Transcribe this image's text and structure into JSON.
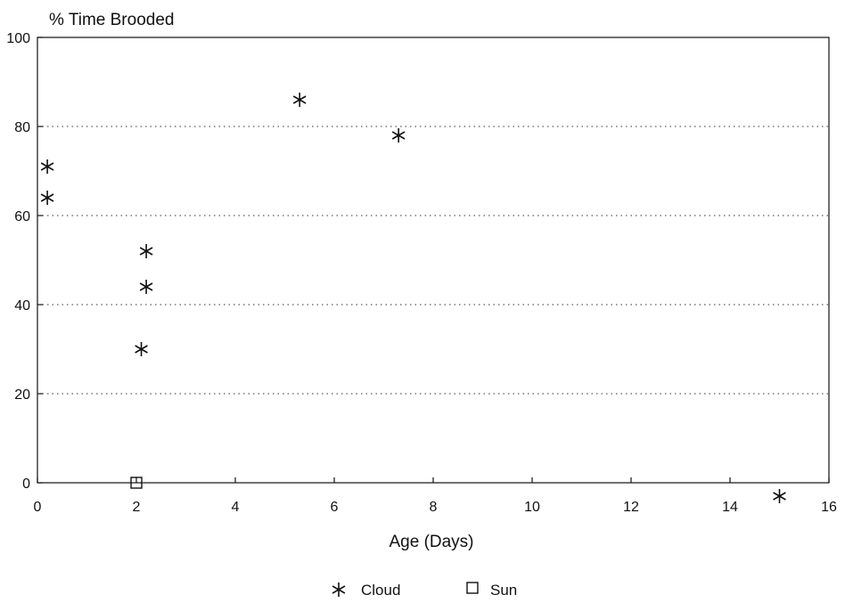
{
  "chart_data": {
    "type": "scatter",
    "ylabel": "% Time Brooded",
    "xlabel": "Age (Days)",
    "xlim": [
      0,
      16
    ],
    "ylim": [
      0,
      100
    ],
    "x_ticks": [
      "0",
      "2",
      "4",
      "6",
      "8",
      "10",
      "12",
      "14",
      "16"
    ],
    "y_ticks": [
      "0",
      "20",
      "40",
      "60",
      "80",
      "100"
    ],
    "grid": "horizontal dotted",
    "legend_placement": "bottom-center",
    "series": [
      {
        "name": "Cloud",
        "marker": "asterisk",
        "points": [
          {
            "x": 0.2,
            "y": 71
          },
          {
            "x": 0.2,
            "y": 64
          },
          {
            "x": 2.2,
            "y": 52
          },
          {
            "x": 2.2,
            "y": 44
          },
          {
            "x": 2.1,
            "y": 30
          },
          {
            "x": 5.3,
            "y": 86
          },
          {
            "x": 7.3,
            "y": 78
          },
          {
            "x": 15.0,
            "y": -3
          }
        ]
      },
      {
        "name": "Sun",
        "marker": "square",
        "points": [
          {
            "x": 2.0,
            "y": 0
          }
        ]
      }
    ]
  }
}
